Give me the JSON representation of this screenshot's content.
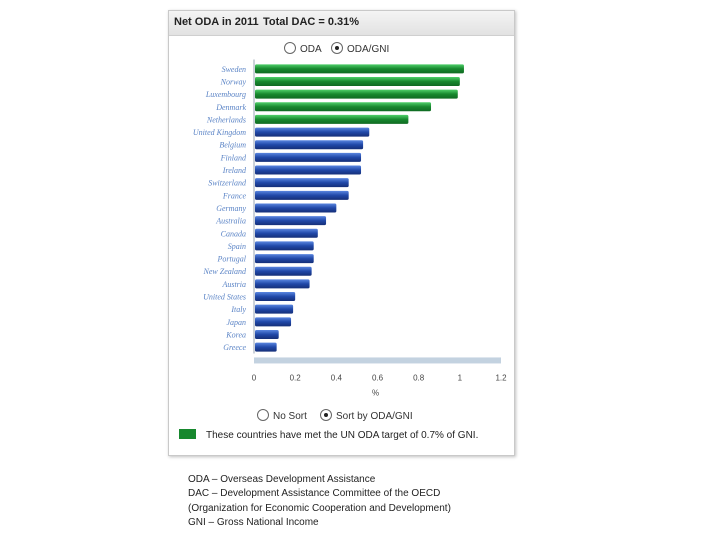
{
  "title": {
    "main": "Net ODA in 2011",
    "total": "Total DAC = 0.31%"
  },
  "top_radio": {
    "options": [
      "ODA",
      "ODA/GNI"
    ],
    "selected": "ODA/GNI"
  },
  "sort_radio": {
    "options": [
      "No Sort",
      "Sort by ODA/GNI"
    ],
    "selected": "Sort by ODA/GNI"
  },
  "legend": {
    "text": "These countries have met the UN ODA target of 0.7% of GNI.",
    "color": "#17882e"
  },
  "abbreviations": [
    "ODA – Overseas Development Assistance",
    "DAC – Development Assistance Committee of the OECD",
    "(Organization for Economic Cooperation and Development)",
    "GNI – Gross National Income"
  ],
  "colors": {
    "target_met": "#17882e",
    "other": "#2048a8",
    "label": "#5b84c6",
    "axis_band": "#c3d2e0"
  },
  "chart_data": {
    "type": "bar",
    "orientation": "horizontal",
    "categories": [
      "Sweden",
      "Norway",
      "Luxembourg",
      "Denmark",
      "Netherlands",
      "United Kingdom",
      "Belgium",
      "Finland",
      "Ireland",
      "Switzerland",
      "France",
      "Germany",
      "Australia",
      "Canada",
      "Spain",
      "Portugal",
      "New Zealand",
      "Austria",
      "United States",
      "Italy",
      "Japan",
      "Korea",
      "Greece"
    ],
    "values": [
      1.02,
      1.0,
      0.99,
      0.86,
      0.75,
      0.56,
      0.53,
      0.52,
      0.52,
      0.46,
      0.46,
      0.4,
      0.35,
      0.31,
      0.29,
      0.29,
      0.28,
      0.27,
      0.2,
      0.19,
      0.18,
      0.12,
      0.11
    ],
    "met_target": [
      true,
      true,
      true,
      true,
      true,
      false,
      false,
      false,
      false,
      false,
      false,
      false,
      false,
      false,
      false,
      false,
      false,
      false,
      false,
      false,
      false,
      false,
      false
    ],
    "xlim": [
      0,
      1.2
    ],
    "xticks": [
      0,
      0.2,
      0.4,
      0.6,
      0.8,
      1,
      1.2
    ],
    "xlabel": "%",
    "ylabel": "",
    "grid": false
  }
}
